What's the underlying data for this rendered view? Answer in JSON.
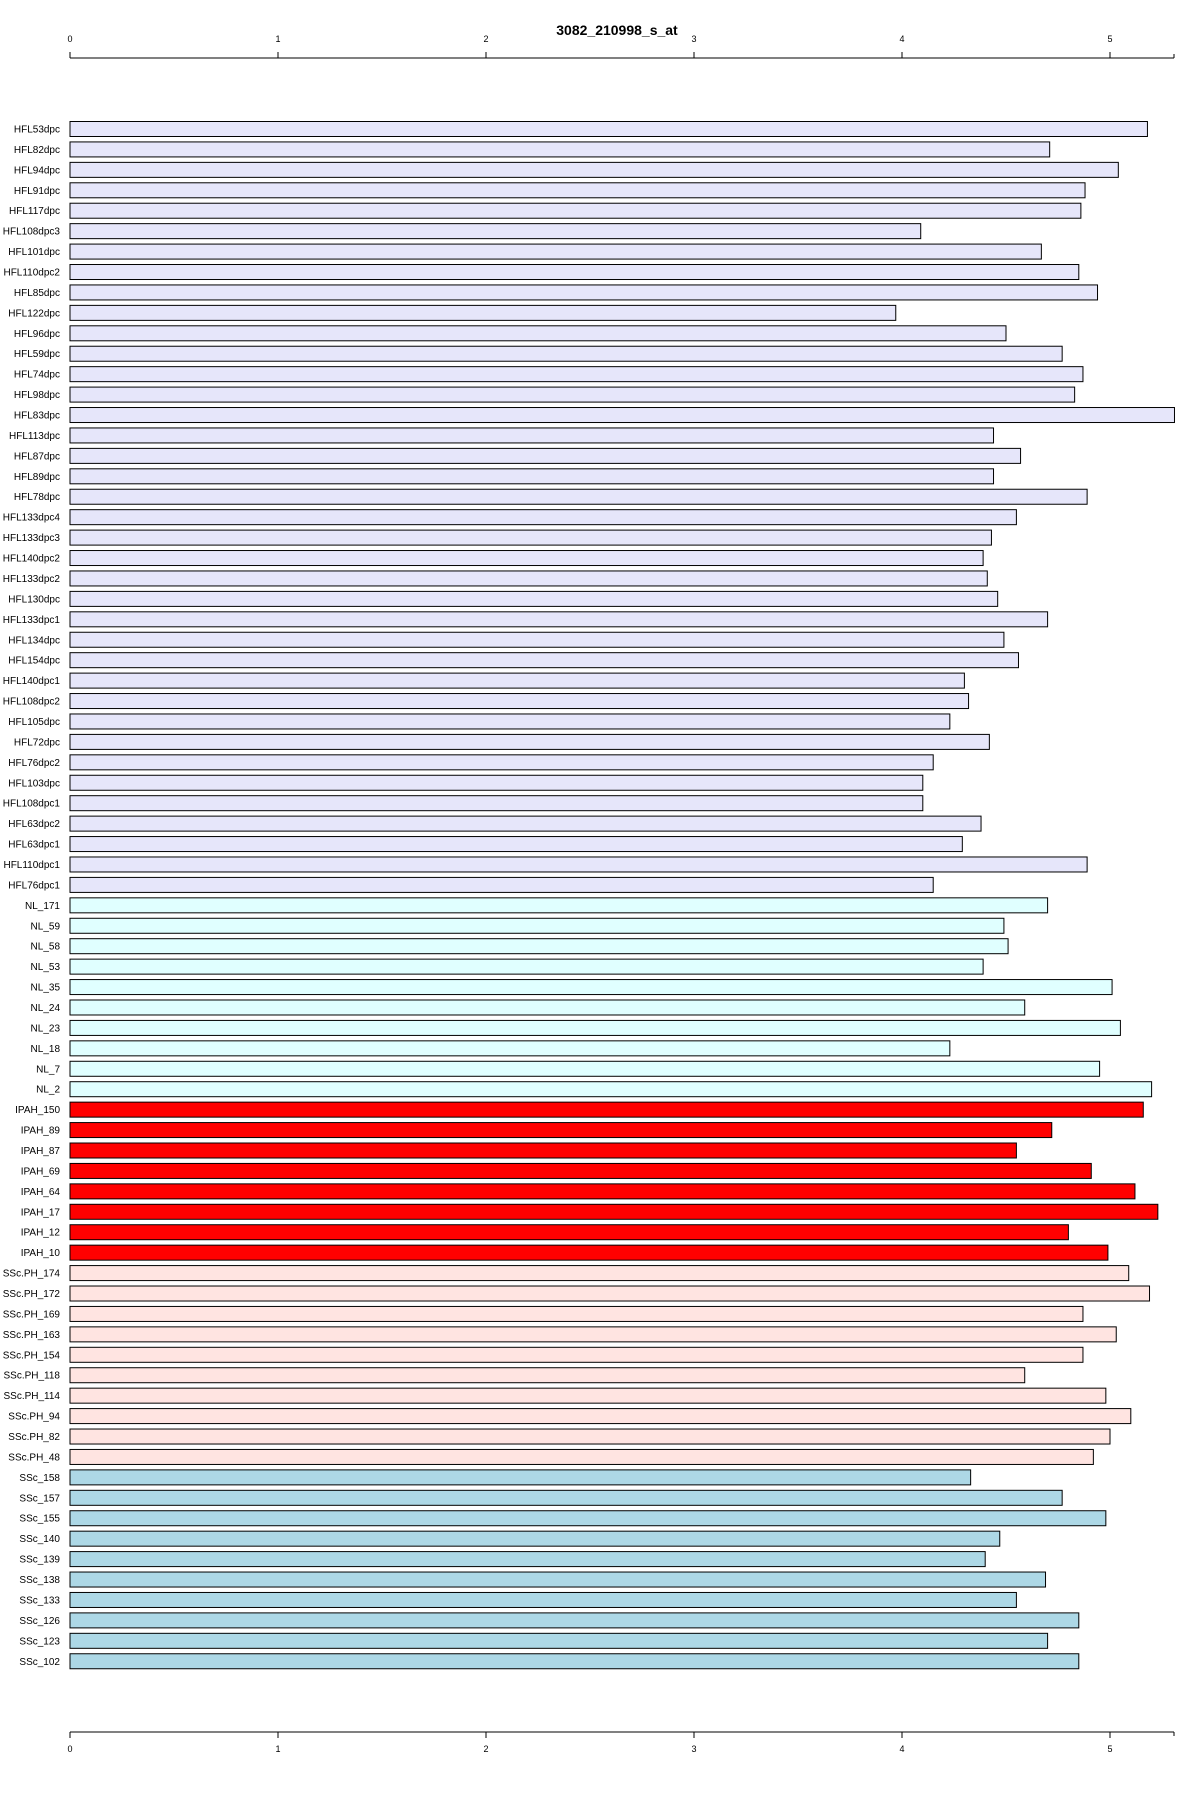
{
  "chart_data": {
    "type": "bar",
    "orientation": "horizontal",
    "title": "3082_210998_s_at",
    "xlabel": "",
    "ylabel": "",
    "xlim": [
      0,
      5.3
    ],
    "ticks": [
      0,
      1,
      2,
      3,
      4,
      5
    ],
    "tick_labels": [
      "0",
      "1",
      "2",
      "3",
      "4",
      "5"
    ],
    "axes": "top-and-bottom",
    "grid": false,
    "groups": [
      {
        "color": "#e6e6fa",
        "rows": [
          {
            "label": "HFL53dpc",
            "value": 5.18
          },
          {
            "label": "HFL82dpc",
            "value": 4.71
          },
          {
            "label": "HFL94dpc",
            "value": 5.04
          },
          {
            "label": "HFL91dpc",
            "value": 4.88
          },
          {
            "label": "HFL117dpc",
            "value": 4.86
          },
          {
            "label": "HFL108dpc3",
            "value": 4.09
          },
          {
            "label": "HFL101dpc",
            "value": 4.67
          },
          {
            "label": "HFL110dpc2",
            "value": 4.85
          },
          {
            "label": "HFL85dpc",
            "value": 4.94
          },
          {
            "label": "HFL122dpc",
            "value": 3.97
          },
          {
            "label": "HFL96dpc",
            "value": 4.5
          },
          {
            "label": "HFL59dpc",
            "value": 4.77
          },
          {
            "label": "HFL74dpc",
            "value": 4.87
          },
          {
            "label": "HFL98dpc",
            "value": 4.83
          },
          {
            "label": "HFL83dpc",
            "value": 5.31
          },
          {
            "label": "HFL113dpc",
            "value": 4.44
          },
          {
            "label": "HFL87dpc",
            "value": 4.57
          },
          {
            "label": "HFL89dpc",
            "value": 4.44
          },
          {
            "label": "HFL78dpc",
            "value": 4.89
          },
          {
            "label": "HFL133dpc4",
            "value": 4.55
          },
          {
            "label": "HFL133dpc3",
            "value": 4.43
          },
          {
            "label": "HFL140dpc2",
            "value": 4.39
          },
          {
            "label": "HFL133dpc2",
            "value": 4.41
          },
          {
            "label": "HFL130dpc",
            "value": 4.46
          },
          {
            "label": "HFL133dpc1",
            "value": 4.7
          },
          {
            "label": "HFL134dpc",
            "value": 4.49
          },
          {
            "label": "HFL154dpc",
            "value": 4.56
          },
          {
            "label": "HFL140dpc1",
            "value": 4.3
          },
          {
            "label": "HFL108dpc2",
            "value": 4.32
          },
          {
            "label": "HFL105dpc",
            "value": 4.23
          },
          {
            "label": "HFL72dpc",
            "value": 4.42
          },
          {
            "label": "HFL76dpc2",
            "value": 4.15
          },
          {
            "label": "HFL103dpc",
            "value": 4.1
          },
          {
            "label": "HFL108dpc1",
            "value": 4.1
          },
          {
            "label": "HFL63dpc2",
            "value": 4.38
          },
          {
            "label": "HFL63dpc1",
            "value": 4.29
          },
          {
            "label": "HFL110dpc1",
            "value": 4.89
          },
          {
            "label": "HFL76dpc1",
            "value": 4.15
          }
        ]
      },
      {
        "color": "#e0ffff",
        "rows": [
          {
            "label": "NL_171",
            "value": 4.7
          },
          {
            "label": "NL_59",
            "value": 4.49
          },
          {
            "label": "NL_58",
            "value": 4.51
          },
          {
            "label": "NL_53",
            "value": 4.39
          },
          {
            "label": "NL_35",
            "value": 5.01
          },
          {
            "label": "NL_24",
            "value": 4.59
          },
          {
            "label": "NL_23",
            "value": 5.05
          },
          {
            "label": "NL_18",
            "value": 4.23
          },
          {
            "label": "NL_7",
            "value": 4.95
          },
          {
            "label": "NL_2",
            "value": 5.2
          }
        ]
      },
      {
        "color": "#ff0000",
        "rows": [
          {
            "label": "IPAH_150",
            "value": 5.16
          },
          {
            "label": "IPAH_89",
            "value": 4.72
          },
          {
            "label": "IPAH_87",
            "value": 4.55
          },
          {
            "label": "IPAH_69",
            "value": 4.91
          },
          {
            "label": "IPAH_64",
            "value": 5.12
          },
          {
            "label": "IPAH_17",
            "value": 5.23
          },
          {
            "label": "IPAH_12",
            "value": 4.8
          },
          {
            "label": "IPAH_10",
            "value": 4.99
          }
        ]
      },
      {
        "color": "#ffe4e1",
        "rows": [
          {
            "label": "SSc.PH_174",
            "value": 5.09
          },
          {
            "label": "SSc.PH_172",
            "value": 5.19
          },
          {
            "label": "SSc.PH_169",
            "value": 4.87
          },
          {
            "label": "SSc.PH_163",
            "value": 5.03
          },
          {
            "label": "SSc.PH_154",
            "value": 4.87
          },
          {
            "label": "SSc.PH_118",
            "value": 4.59
          },
          {
            "label": "SSc.PH_114",
            "value": 4.98
          },
          {
            "label": "SSc.PH_94",
            "value": 5.1
          },
          {
            "label": "SSc.PH_82",
            "value": 5.0
          },
          {
            "label": "SSc.PH_48",
            "value": 4.92
          }
        ]
      },
      {
        "color": "#add8e6",
        "rows": [
          {
            "label": "SSc_158",
            "value": 4.33
          },
          {
            "label": "SSc_157",
            "value": 4.77
          },
          {
            "label": "SSc_155",
            "value": 4.98
          },
          {
            "label": "SSc_140",
            "value": 4.47
          },
          {
            "label": "SSc_139",
            "value": 4.4
          },
          {
            "label": "SSc_138",
            "value": 4.69
          },
          {
            "label": "SSc_133",
            "value": 4.55
          },
          {
            "label": "SSc_126",
            "value": 4.85
          },
          {
            "label": "SSc_123",
            "value": 4.7
          },
          {
            "label": "SSc_102",
            "value": 4.85
          }
        ]
      }
    ]
  }
}
